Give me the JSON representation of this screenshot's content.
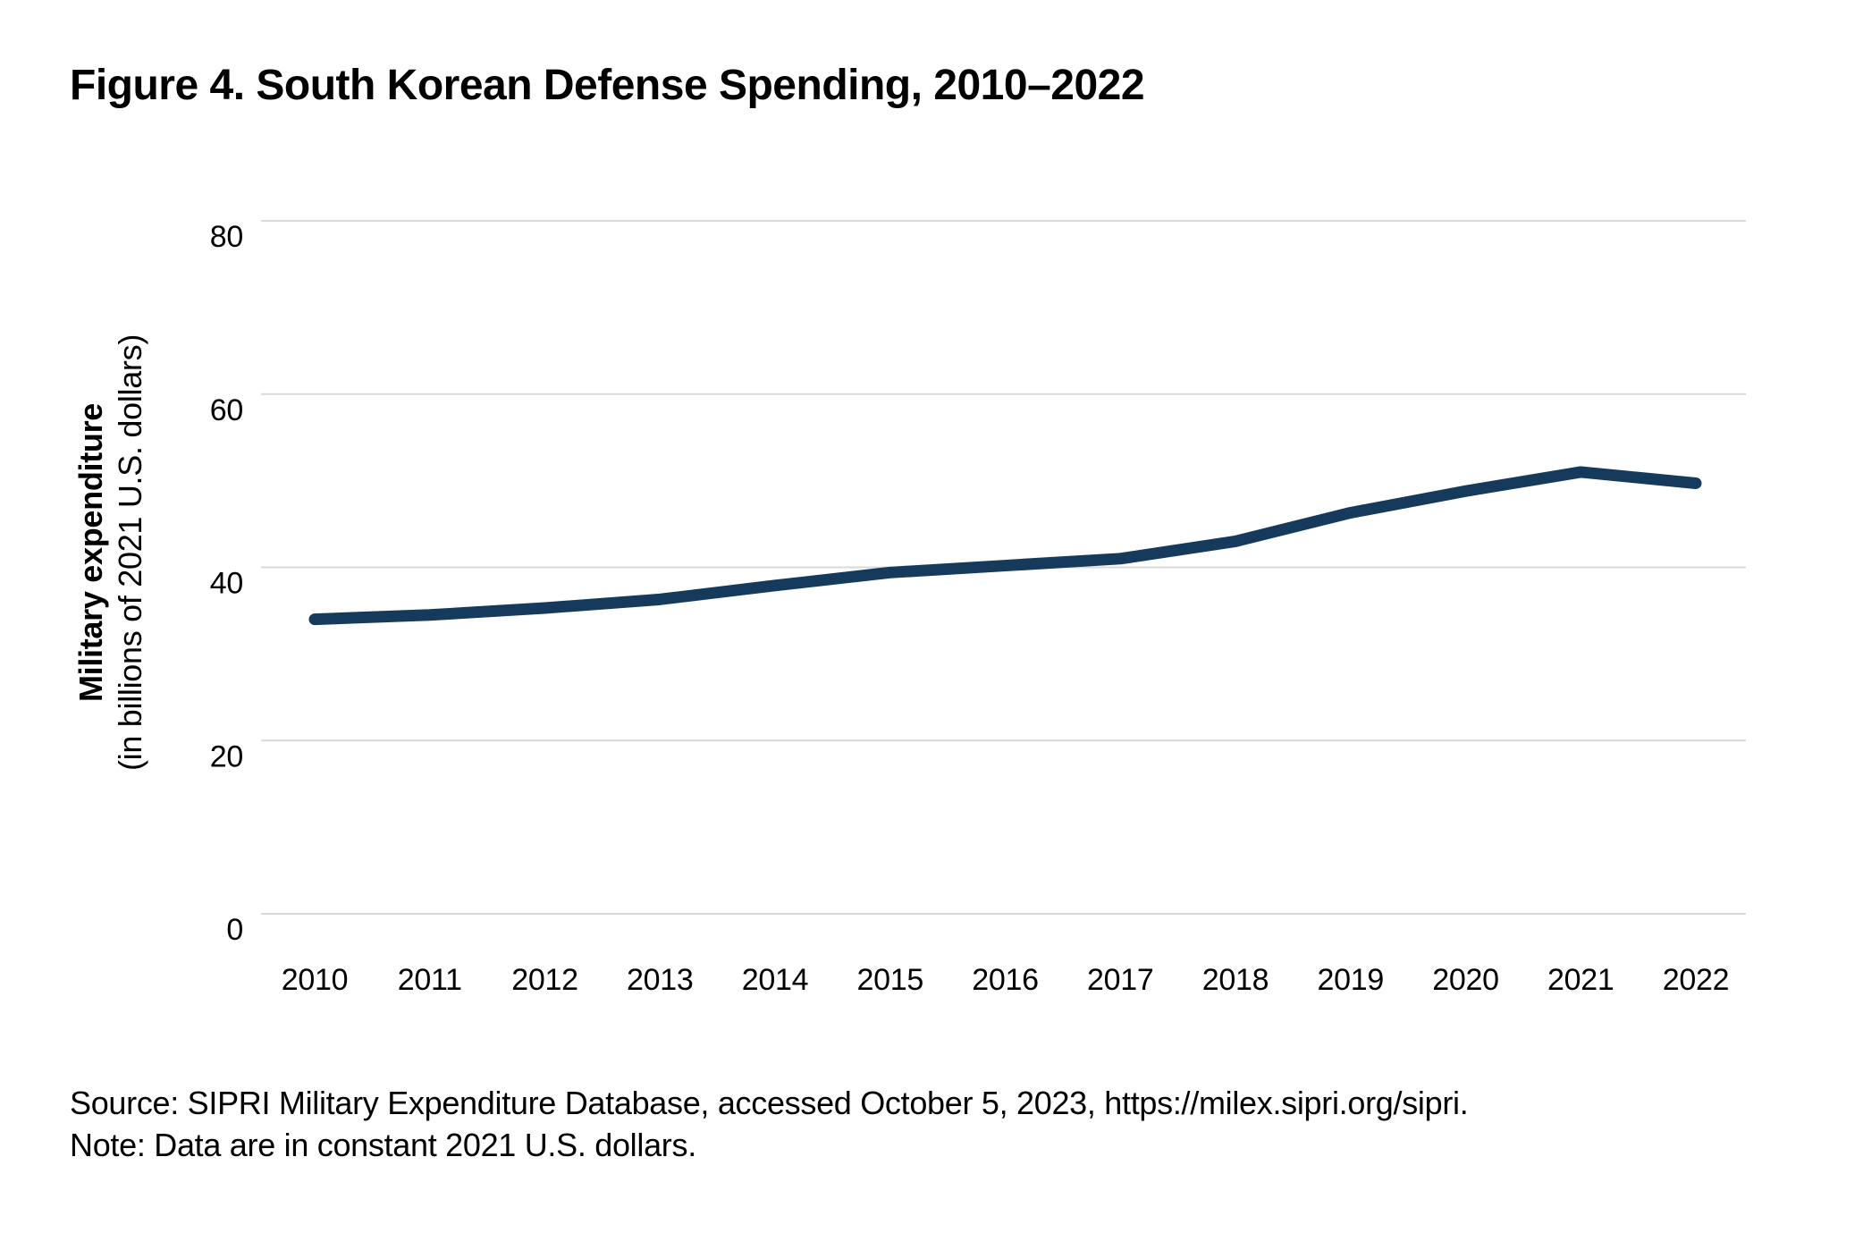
{
  "figure": {
    "title": "Figure 4. South Korean Defense Spending, 2010–2022",
    "source_line": "Source: SIPRI Military Expenditure Database, accessed October 5, 2023, https://milex.sipri.org/sipri.",
    "note_line": "Note: Data are in constant 2021 U.S. dollars."
  },
  "chart_data": {
    "type": "line",
    "title": "Figure 4. South Korean Defense Spending, 2010–2022",
    "x": [
      2010,
      2011,
      2012,
      2013,
      2014,
      2015,
      2016,
      2017,
      2018,
      2019,
      2020,
      2021,
      2022
    ],
    "series": [
      {
        "name": "South Korean military expenditure",
        "values": [
          34.0,
          34.5,
          35.3,
          36.3,
          37.9,
          39.4,
          40.2,
          41.0,
          43.0,
          46.3,
          48.8,
          51.0,
          49.7
        ]
      }
    ],
    "ylabel_main": "Military expenditure",
    "ylabel_sub": "(in billions of 2021 U.S. dollars)",
    "xlabel": "",
    "ylim": [
      0,
      80
    ],
    "yticks": [
      0,
      20,
      40,
      60,
      80
    ],
    "grid": "horizontal",
    "legend": "none",
    "line_color": "#163a5c",
    "grid_color": "#d9d9d9",
    "text_color": "#000000"
  }
}
